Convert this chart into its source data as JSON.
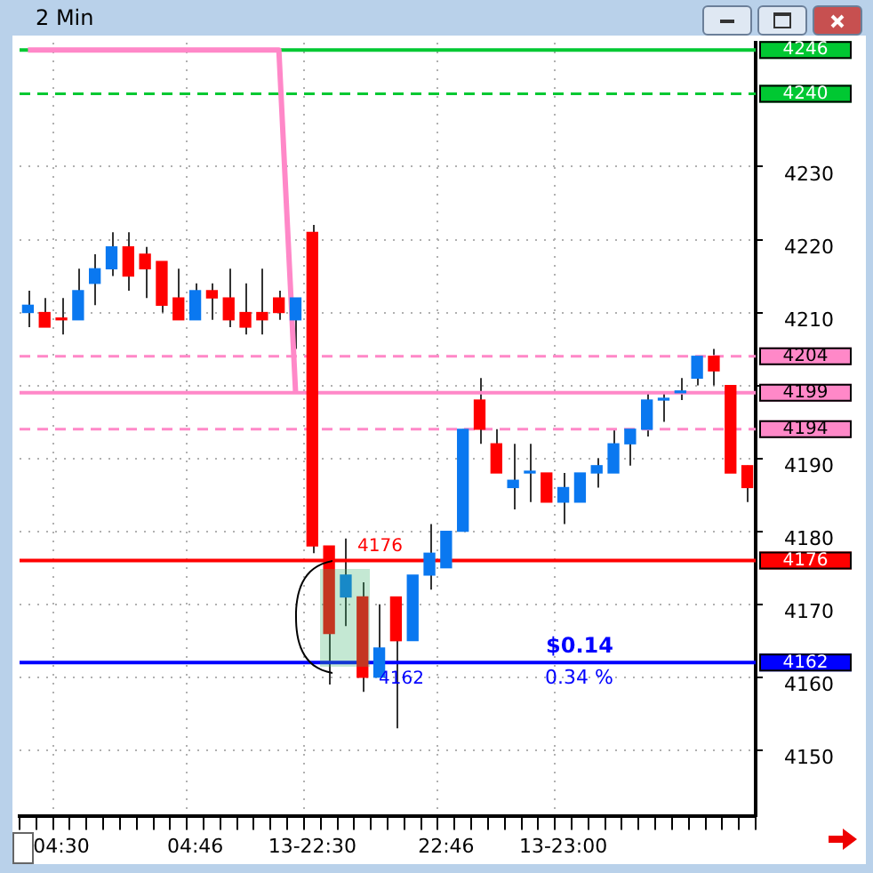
{
  "chart_data": {
    "type": "candlestick",
    "title": "2 Min",
    "categories": [
      null,
      null,
      "04:30",
      null,
      null,
      null,
      null,
      null,
      null,
      null,
      "04:46",
      null,
      null,
      null,
      null,
      null,
      null,
      "13-22:30",
      null,
      null,
      null,
      null,
      null,
      null,
      null,
      "22:46",
      null,
      null,
      null,
      null,
      null,
      null,
      "13-23:00",
      null,
      null,
      null,
      null,
      null,
      null,
      null,
      null,
      null,
      null,
      null
    ],
    "ohlc": [
      [
        4210,
        4213,
        4208,
        4211
      ],
      [
        4210,
        4212,
        4208,
        4208
      ],
      [
        4209,
        4212,
        4207,
        4209
      ],
      [
        4209,
        4216,
        4209,
        4213
      ],
      [
        4214,
        4218,
        4211,
        4216
      ],
      [
        4216,
        4221,
        4215,
        4219
      ],
      [
        4219,
        4221,
        4213,
        4215
      ],
      [
        4218,
        4219,
        4212,
        4216
      ],
      [
        4217,
        4217,
        4210,
        4211
      ],
      [
        4212,
        4216,
        4209,
        4209
      ],
      [
        4209,
        4214,
        4209,
        4213
      ],
      [
        4213,
        4214,
        4209,
        4212
      ],
      [
        4212,
        4216,
        4208,
        4209
      ],
      [
        4210,
        4214,
        4207,
        4208
      ],
      [
        4210,
        4216,
        4207,
        4209
      ],
      [
        4212,
        4213,
        4209,
        4210
      ],
      [
        4209,
        4212,
        4205,
        4212
      ],
      [
        4221,
        4222,
        4177,
        4178
      ],
      [
        4178,
        4178,
        4159,
        4166
      ],
      [
        4171,
        4179,
        4167,
        4174
      ],
      [
        4171,
        4173,
        4158,
        4160
      ],
      [
        4160,
        4170,
        4160,
        4164
      ],
      [
        4171,
        4171,
        4153,
        4165
      ],
      [
        4165,
        4174,
        4165,
        4174
      ],
      [
        4174,
        4181,
        4172,
        4177
      ],
      [
        4175,
        4180,
        4175,
        4180
      ],
      [
        4180,
        4194,
        4180,
        4194
      ],
      [
        4198,
        4201,
        4192,
        4194
      ],
      [
        4192,
        4194,
        4188,
        4188
      ],
      [
        4186,
        4192,
        4183,
        4187
      ],
      [
        4188,
        4192,
        4184,
        4188
      ],
      [
        4188,
        4188,
        4184,
        4184
      ],
      [
        4184,
        4188,
        4181,
        4186
      ],
      [
        4184,
        4188,
        4184,
        4188
      ],
      [
        4188,
        4190,
        4186,
        4189
      ],
      [
        4188,
        4194,
        4188,
        4192
      ],
      [
        4192,
        4194,
        4189,
        4194
      ],
      [
        4194,
        4199,
        4193,
        4198
      ],
      [
        4198,
        4199,
        4195,
        4198
      ],
      [
        4199,
        4201,
        4198,
        4199
      ],
      [
        4201,
        4204,
        4200,
        4204
      ],
      [
        4204,
        4205,
        4200,
        4202
      ],
      [
        4200,
        4200,
        4188,
        4188
      ],
      [
        4189,
        4189,
        4184,
        4186
      ]
    ],
    "colors": [
      "#0a78f0",
      "#ff0000",
      "#ff0000",
      "#0a78f0",
      "#0a78f0",
      "#0a78f0",
      "#ff0000",
      "#ff0000",
      "#ff0000",
      "#ff0000",
      "#0a78f0",
      "#ff0000",
      "#ff0000",
      "#ff0000",
      "#ff0000",
      "#ff0000",
      "#0a78f0",
      "#ff0000",
      "#ff0000",
      "#0a78f0",
      "#ff0000",
      "#0a78f0",
      "#ff0000",
      "#0a78f0",
      "#0a78f0",
      "#0a78f0",
      "#0a78f0",
      "#ff0000",
      "#ff0000",
      "#0a78f0",
      "#0a78f0",
      "#ff0000",
      "#0a78f0",
      "#0a78f0",
      "#0a78f0",
      "#0a78f0",
      "#0a78f0",
      "#0a78f0",
      "#0a78f0",
      "#0a78f0",
      "#0a78f0",
      "#ff0000",
      "#ff0000",
      "#ff0000"
    ],
    "series": [
      {
        "type": "line",
        "color": "#ff88c8",
        "values": [
          4246,
          4246,
          4246,
          4246,
          4246,
          4246,
          4246,
          4246,
          4246,
          4246,
          4246,
          4246,
          4246,
          4246,
          4246,
          4246,
          4199,
          null,
          null,
          null,
          null,
          null,
          null,
          null,
          null,
          null,
          null,
          null,
          null,
          null,
          null,
          null,
          null,
          null,
          null,
          null,
          null,
          null,
          null,
          null,
          null,
          null,
          null,
          null
        ]
      }
    ],
    "ylim": [
      4141,
      4247
    ],
    "yticks": [
      4150,
      4160,
      4170,
      4180,
      4190,
      {
        "value": 4200,
        "label": null
      },
      4210,
      4220,
      4230
    ],
    "ref_lines": [
      {
        "axis": "y",
        "value": 4246,
        "color": "#00c832",
        "line_style": "solid",
        "label": "4246"
      },
      {
        "axis": "y",
        "value": 4240,
        "color": "#00c832",
        "line_style": "dashed",
        "label": "4240"
      },
      {
        "axis": "y",
        "value": 4204,
        "color": "#ff88c8",
        "line_style": "dashed",
        "label": "4204"
      },
      {
        "axis": "y",
        "value": 4199,
        "color": "#ff88c8",
        "line_style": "solid",
        "label": "4199"
      },
      {
        "axis": "y",
        "value": 4194,
        "color": "#ff88c8",
        "line_style": "dashed",
        "label": "4194"
      },
      {
        "axis": "y",
        "value": 4176,
        "color": "#ff0000",
        "line_style": "solid",
        "label": "4176"
      },
      {
        "axis": "y",
        "value": 4162,
        "color": "#0000ff",
        "line_style": "solid",
        "label": "4162"
      }
    ],
    "annotations": [
      {
        "text": "4176",
        "y": 4176
      },
      {
        "text": "4162",
        "y": 4162
      },
      {
        "text": "$0.14",
        "y": 4162
      },
      {
        "text": "0.34 %",
        "y": 4162
      }
    ],
    "grid": true,
    "legend": false
  }
}
